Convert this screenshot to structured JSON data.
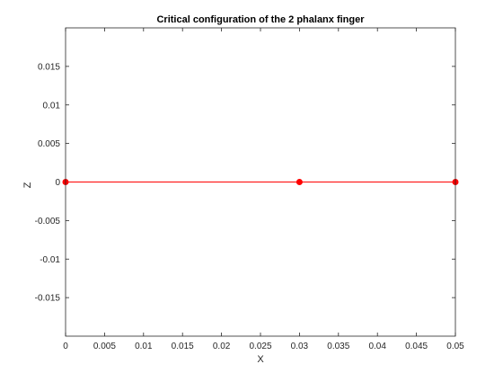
{
  "chart_data": {
    "type": "line",
    "title": "Critical configuration of the 2 phalanx finger",
    "xlabel": "X",
    "ylabel": "Z",
    "xlim": [
      0,
      0.05
    ],
    "ylim": [
      -0.02,
      0.02
    ],
    "xticks": [
      0,
      0.005,
      0.01,
      0.015,
      0.02,
      0.025,
      0.03,
      0.035,
      0.04,
      0.045,
      0.05
    ],
    "xtick_labels": [
      "0",
      "0.005",
      "0.01",
      "0.015",
      "0.02",
      "0.025",
      "0.03",
      "0.035",
      "0.04",
      "0.045",
      "0.05"
    ],
    "yticks": [
      0.015,
      0.01,
      0.005,
      0,
      -0.005,
      -0.01,
      -0.015
    ],
    "ytick_labels": [
      "0.015",
      "0.01",
      "0.005",
      "0",
      "-0.005",
      "-0.01",
      "-0.015"
    ],
    "grid": false,
    "series": [
      {
        "color": "#ff0000",
        "marker": "filled-circle",
        "x": [
          0,
          0.03,
          0.05
        ],
        "y": [
          0,
          0,
          0
        ]
      }
    ]
  }
}
